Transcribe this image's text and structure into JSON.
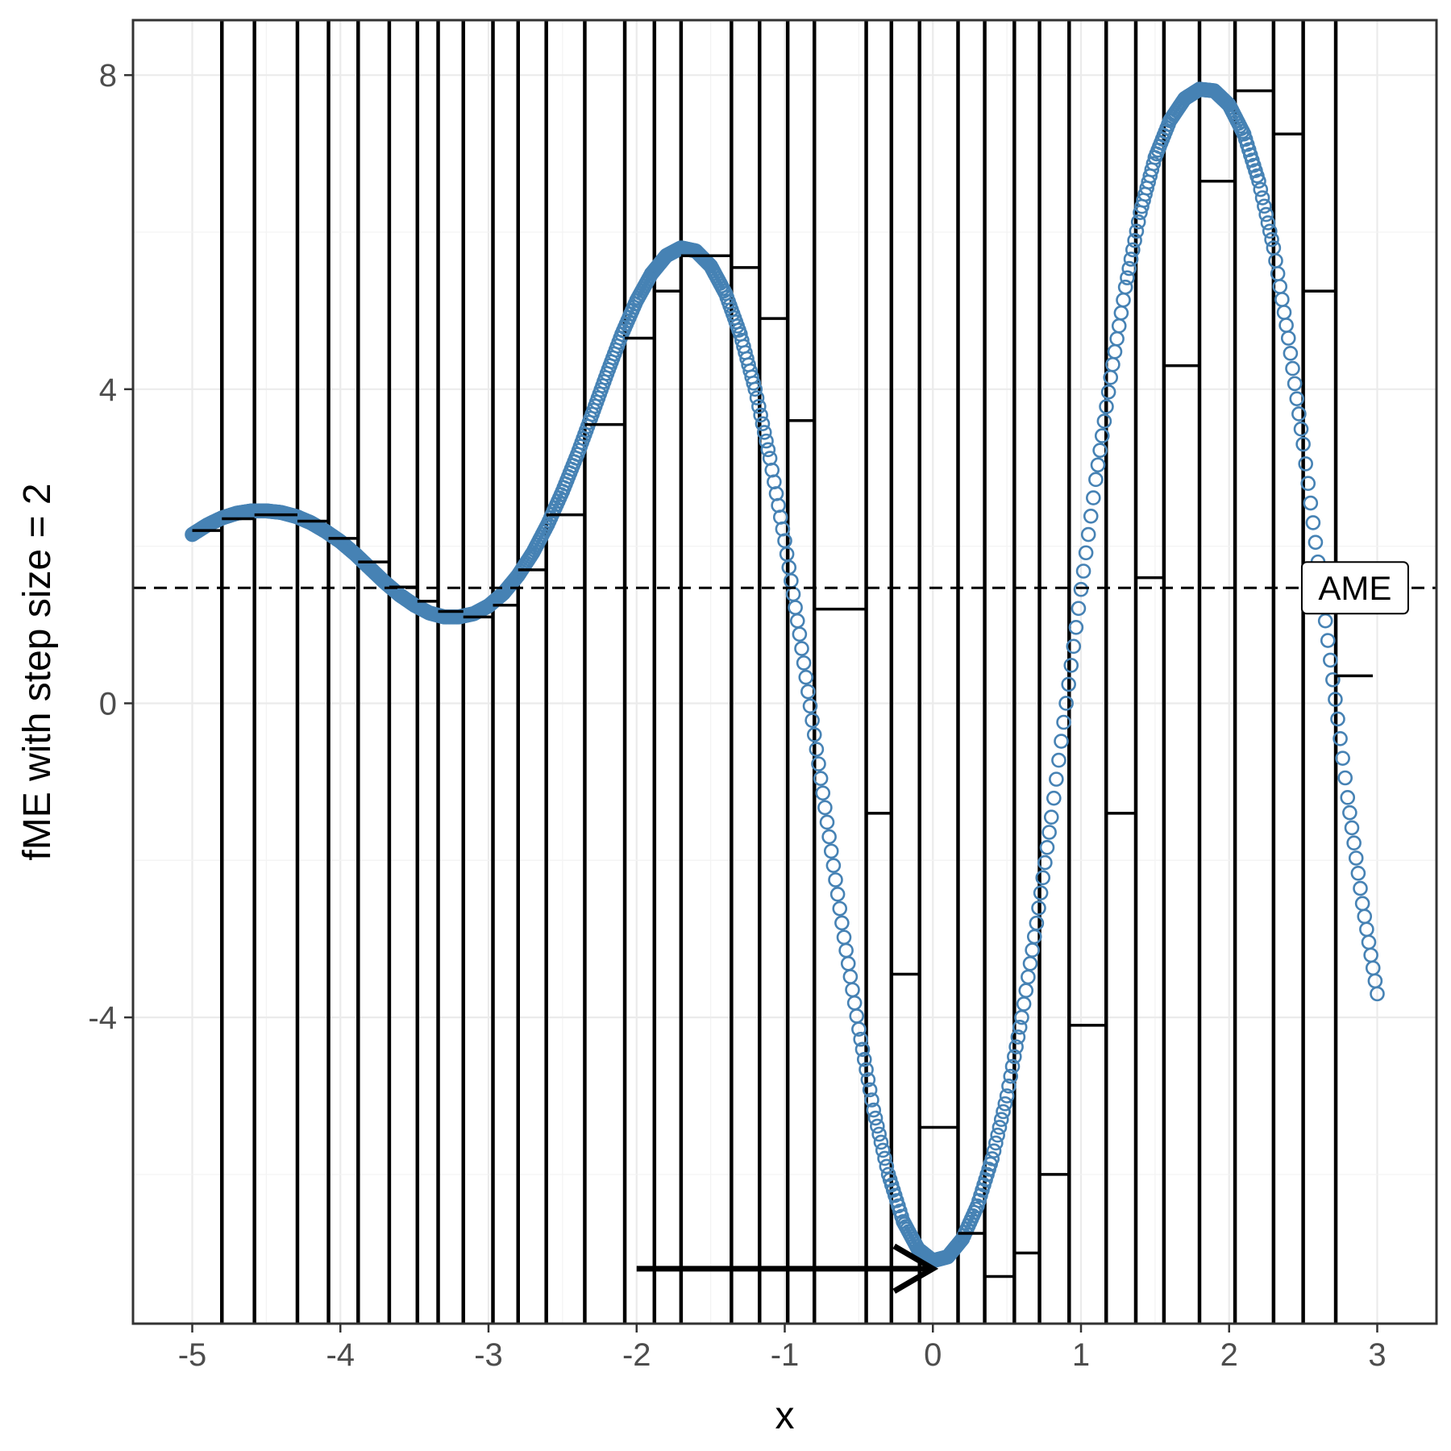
{
  "chart_data": {
    "type": "scatter",
    "title": "",
    "xlabel": "x",
    "ylabel": "fME with step size = 2",
    "xlim": [
      -5.4,
      3.4
    ],
    "ylim": [
      -7.9,
      8.7
    ],
    "xticks": [
      -5,
      -4,
      -3,
      -2,
      -1,
      0,
      1,
      2,
      3
    ],
    "yticks": [
      -4,
      0,
      4,
      8
    ],
    "xtick_labels": [
      "-5",
      "-4",
      "-3",
      "-2",
      "-1",
      "0",
      "1",
      "2",
      "3"
    ],
    "ytick_labels": [
      "-4",
      "0",
      "4",
      "8"
    ],
    "grid": true,
    "point_color": "#4682b4",
    "ame": {
      "value": 1.47,
      "label": "AME",
      "x": 2.85,
      "linestyle": "dashed"
    },
    "arrow": {
      "x_start": -2,
      "x_end": 0,
      "y": -7.2
    },
    "interval_boundaries": [
      -4.8,
      -4.58,
      -4.29,
      -4.08,
      -3.88,
      -3.67,
      -3.48,
      -3.34,
      -3.17,
      -2.97,
      -2.8,
      -2.61,
      -2.35,
      -2.08,
      -1.88,
      -1.7,
      -1.36,
      -1.17,
      -0.98,
      -0.8,
      -0.45,
      -0.28,
      -0.09,
      0.17,
      0.35,
      0.55,
      0.72,
      0.92,
      1.17,
      1.37,
      1.56,
      1.8,
      2.04,
      2.3,
      2.5,
      2.72
    ],
    "interval_means": [
      {
        "x0": -5.0,
        "x1": -4.8,
        "y": 2.2
      },
      {
        "x0": -4.8,
        "x1": -4.58,
        "y": 2.35
      },
      {
        "x0": -4.58,
        "x1": -4.29,
        "y": 2.4
      },
      {
        "x0": -4.29,
        "x1": -4.08,
        "y": 2.32
      },
      {
        "x0": -4.08,
        "x1": -3.88,
        "y": 2.1
      },
      {
        "x0": -3.88,
        "x1": -3.67,
        "y": 1.8
      },
      {
        "x0": -3.67,
        "x1": -3.48,
        "y": 1.48
      },
      {
        "x0": -3.48,
        "x1": -3.34,
        "y": 1.3
      },
      {
        "x0": -3.34,
        "x1": -3.17,
        "y": 1.17
      },
      {
        "x0": -3.17,
        "x1": -2.97,
        "y": 1.1
      },
      {
        "x0": -2.97,
        "x1": -2.8,
        "y": 1.25
      },
      {
        "x0": -2.8,
        "x1": -2.61,
        "y": 1.7
      },
      {
        "x0": -2.61,
        "x1": -2.35,
        "y": 2.4
      },
      {
        "x0": -2.35,
        "x1": -2.08,
        "y": 3.55
      },
      {
        "x0": -2.08,
        "x1": -1.88,
        "y": 4.65
      },
      {
        "x0": -1.88,
        "x1": -1.7,
        "y": 5.25
      },
      {
        "x0": -1.7,
        "x1": -1.36,
        "y": 5.7
      },
      {
        "x0": -1.36,
        "x1": -1.17,
        "y": 5.55
      },
      {
        "x0": -1.17,
        "x1": -0.98,
        "y": 4.9
      },
      {
        "x0": -0.98,
        "x1": -0.8,
        "y": 3.6
      },
      {
        "x0": -0.8,
        "x1": -0.45,
        "y": 1.2
      },
      {
        "x0": -0.45,
        "x1": -0.28,
        "y": -1.4
      },
      {
        "x0": -0.28,
        "x1": -0.09,
        "y": -3.45
      },
      {
        "x0": -0.09,
        "x1": 0.17,
        "y": -5.4
      },
      {
        "x0": 0.17,
        "x1": 0.35,
        "y": -6.75
      },
      {
        "x0": 0.35,
        "x1": 0.55,
        "y": -7.3
      },
      {
        "x0": 0.55,
        "x1": 0.72,
        "y": -7.0
      },
      {
        "x0": 0.72,
        "x1": 0.92,
        "y": -6.0
      },
      {
        "x0": 0.92,
        "x1": 1.17,
        "y": -4.1
      },
      {
        "x0": 1.17,
        "x1": 1.37,
        "y": -1.4
      },
      {
        "x0": 1.37,
        "x1": 1.56,
        "y": 1.6
      },
      {
        "x0": 1.56,
        "x1": 1.8,
        "y": 4.3
      },
      {
        "x0": 1.8,
        "x1": 2.04,
        "y": 6.65
      },
      {
        "x0": 2.04,
        "x1": 2.3,
        "y": 7.8
      },
      {
        "x0": 2.3,
        "x1": 2.5,
        "y": 7.25
      },
      {
        "x0": 2.5,
        "x1": 2.72,
        "y": 5.25
      },
      {
        "x0": 2.72,
        "x1": 2.97,
        "y": 0.35
      }
    ],
    "series": [
      {
        "x": [
          -5.0,
          -4.9,
          -4.8,
          -4.7,
          -4.6,
          -4.5,
          -4.4,
          -4.3,
          -4.2,
          -4.1,
          -4.0,
          -3.9,
          -3.8,
          -3.7,
          -3.6,
          -3.5,
          -3.4,
          -3.3,
          -3.2,
          -3.1,
          -3.0,
          -2.9,
          -2.8,
          -2.7,
          -2.6,
          -2.5,
          -2.4,
          -2.3,
          -2.2,
          -2.1,
          -2.0,
          -1.9,
          -1.8,
          -1.7,
          -1.6,
          -1.5,
          -1.4,
          -1.3,
          -1.2,
          -1.1,
          -1.0,
          -0.9,
          -0.8,
          -0.7,
          -0.6,
          -0.5,
          -0.4,
          -0.3,
          -0.2,
          -0.1,
          0.0,
          0.1,
          0.2,
          0.3,
          0.4,
          0.5,
          0.6,
          0.7,
          0.8,
          0.9,
          1.0,
          1.1,
          1.2,
          1.3,
          1.4,
          1.5,
          1.6,
          1.7,
          1.8,
          1.9,
          2.0,
          2.1,
          2.2,
          2.3,
          2.4,
          2.5,
          2.6,
          2.7,
          2.8,
          2.9,
          3.0
        ],
        "y": [
          2.15,
          2.27,
          2.36,
          2.42,
          2.45,
          2.45,
          2.43,
          2.38,
          2.3,
          2.19,
          2.06,
          1.9,
          1.72,
          1.54,
          1.38,
          1.25,
          1.15,
          1.1,
          1.1,
          1.14,
          1.24,
          1.4,
          1.63,
          1.92,
          2.28,
          2.7,
          3.17,
          3.68,
          4.2,
          4.7,
          5.13,
          5.47,
          5.7,
          5.8,
          5.76,
          5.57,
          5.22,
          4.7,
          4.0,
          3.12,
          2.07,
          0.88,
          -0.4,
          -1.7,
          -2.98,
          -4.15,
          -5.18,
          -6.0,
          -6.6,
          -6.95,
          -7.1,
          -7.05,
          -6.82,
          -6.4,
          -5.8,
          -5.0,
          -4.0,
          -2.8,
          -1.45,
          0.0,
          1.45,
          2.85,
          4.15,
          5.3,
          6.25,
          6.95,
          7.42,
          7.7,
          7.82,
          7.8,
          7.62,
          7.25,
          6.65,
          5.8,
          4.65,
          3.3,
          1.8,
          0.3,
          -1.2,
          -2.55,
          -3.7
        ]
      }
    ]
  }
}
